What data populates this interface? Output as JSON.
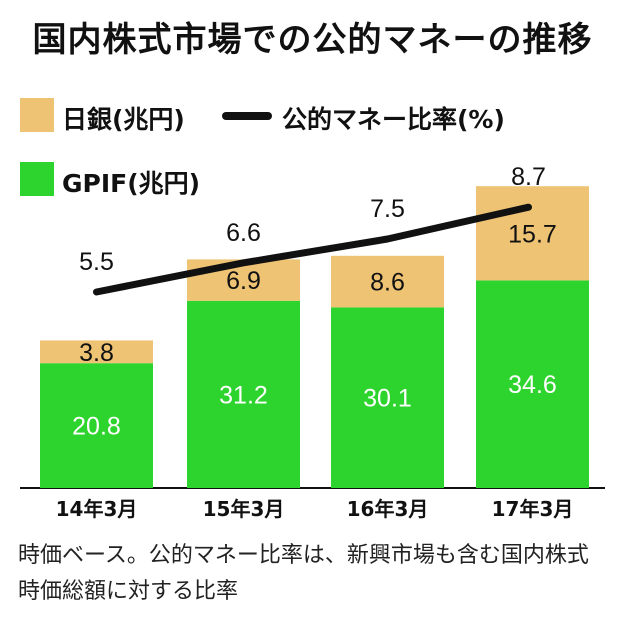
{
  "chart_data": {
    "type": "bar",
    "title": "国内株式市場での公的マネーの推移",
    "categories": [
      "14年3月",
      "15年3月",
      "16年3月",
      "17年3月"
    ],
    "series": [
      {
        "name": "GPIF(兆円)",
        "values": [
          20.8,
          31.2,
          30.1,
          34.6
        ],
        "color": "#2dd42d"
      },
      {
        "name": "日銀(兆円)",
        "values": [
          3.8,
          6.9,
          8.6,
          15.7
        ],
        "color": "#eec374"
      }
    ],
    "line_series": {
      "name": "公的マネー比率(%)",
      "values": [
        5.5,
        6.6,
        7.5,
        8.7
      ],
      "color": "#111111"
    },
    "stacked": true,
    "legend_position": "top-left",
    "grid": false
  },
  "legend": {
    "boj": "日銀(兆円)",
    "gpif": "GPIF(兆円)",
    "ratio": "公的マネー比率(%)"
  },
  "caption": {
    "line1": "時価ベース。公的マネー比率は、新興市場も含む国内株式",
    "line2": "時価総額に対する比率"
  }
}
